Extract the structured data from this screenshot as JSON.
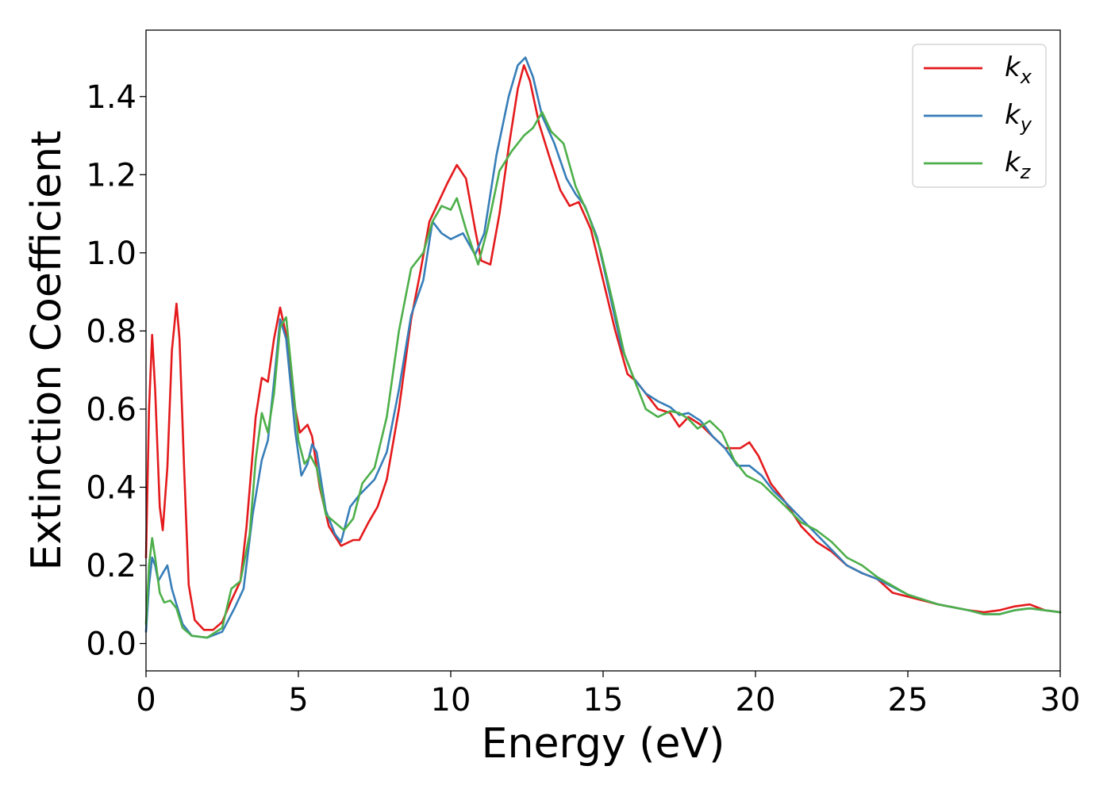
{
  "chart_data": {
    "type": "line",
    "title": "",
    "xlabel": "Energy (eV)",
    "ylabel": "Extinction Coefficient",
    "xlim": [
      0,
      30
    ],
    "ylim": [
      -0.07,
      1.57
    ],
    "xticks": [
      "0",
      "5",
      "10",
      "15",
      "20",
      "25",
      "30"
    ],
    "yticks": [
      "0.0",
      "0.2",
      "0.4",
      "0.6",
      "0.8",
      "1.0",
      "1.2",
      "1.4"
    ],
    "grid": false,
    "legend_position": "top-right",
    "series": [
      {
        "name": "k_x",
        "legend_main": "k",
        "legend_sub": "x",
        "color": "#e41a1c",
        "points": [
          [
            0,
            0.22
          ],
          [
            0.1,
            0.6
          ],
          [
            0.2,
            0.79
          ],
          [
            0.3,
            0.65
          ],
          [
            0.45,
            0.35
          ],
          [
            0.55,
            0.29
          ],
          [
            0.7,
            0.45
          ],
          [
            0.85,
            0.75
          ],
          [
            1.0,
            0.87
          ],
          [
            1.1,
            0.78
          ],
          [
            1.25,
            0.45
          ],
          [
            1.4,
            0.15
          ],
          [
            1.6,
            0.06
          ],
          [
            1.9,
            0.035
          ],
          [
            2.2,
            0.035
          ],
          [
            2.5,
            0.055
          ],
          [
            2.8,
            0.11
          ],
          [
            3.1,
            0.16
          ],
          [
            3.3,
            0.3
          ],
          [
            3.6,
            0.58
          ],
          [
            3.8,
            0.68
          ],
          [
            4.0,
            0.67
          ],
          [
            4.2,
            0.78
          ],
          [
            4.4,
            0.86
          ],
          [
            4.6,
            0.79
          ],
          [
            4.85,
            0.62
          ],
          [
            5.05,
            0.54
          ],
          [
            5.3,
            0.56
          ],
          [
            5.45,
            0.53
          ],
          [
            5.7,
            0.4
          ],
          [
            6.0,
            0.3
          ],
          [
            6.4,
            0.25
          ],
          [
            6.8,
            0.265
          ],
          [
            7.0,
            0.265
          ],
          [
            7.3,
            0.31
          ],
          [
            7.6,
            0.35
          ],
          [
            7.9,
            0.42
          ],
          [
            8.3,
            0.6
          ],
          [
            8.7,
            0.83
          ],
          [
            9.0,
            0.95
          ],
          [
            9.3,
            1.08
          ],
          [
            9.6,
            1.13
          ],
          [
            9.9,
            1.18
          ],
          [
            10.2,
            1.225
          ],
          [
            10.5,
            1.19
          ],
          [
            10.8,
            1.06
          ],
          [
            11.0,
            0.98
          ],
          [
            11.3,
            0.97
          ],
          [
            11.6,
            1.1
          ],
          [
            11.9,
            1.27
          ],
          [
            12.2,
            1.42
          ],
          [
            12.4,
            1.48
          ],
          [
            12.6,
            1.44
          ],
          [
            12.9,
            1.33
          ],
          [
            13.3,
            1.23
          ],
          [
            13.6,
            1.16
          ],
          [
            13.9,
            1.12
          ],
          [
            14.2,
            1.13
          ],
          [
            14.6,
            1.06
          ],
          [
            15.0,
            0.93
          ],
          [
            15.4,
            0.8
          ],
          [
            15.8,
            0.69
          ],
          [
            16.1,
            0.67
          ],
          [
            16.5,
            0.63
          ],
          [
            16.8,
            0.6
          ],
          [
            17.2,
            0.59
          ],
          [
            17.5,
            0.555
          ],
          [
            17.8,
            0.58
          ],
          [
            18.2,
            0.56
          ],
          [
            18.6,
            0.53
          ],
          [
            19.0,
            0.5
          ],
          [
            19.5,
            0.5
          ],
          [
            19.8,
            0.515
          ],
          [
            20.1,
            0.48
          ],
          [
            20.5,
            0.41
          ],
          [
            21.0,
            0.36
          ],
          [
            21.5,
            0.3
          ],
          [
            22.0,
            0.26
          ],
          [
            22.5,
            0.235
          ],
          [
            23.0,
            0.2
          ],
          [
            23.5,
            0.18
          ],
          [
            24.0,
            0.165
          ],
          [
            24.5,
            0.13
          ],
          [
            25.0,
            0.12
          ],
          [
            26.0,
            0.1
          ],
          [
            27.0,
            0.085
          ],
          [
            27.5,
            0.08
          ],
          [
            28.0,
            0.085
          ],
          [
            28.5,
            0.095
          ],
          [
            29.0,
            0.1
          ],
          [
            29.5,
            0.085
          ],
          [
            30.0,
            0.08
          ]
        ]
      },
      {
        "name": "k_y",
        "legend_main": "k",
        "legend_sub": "y",
        "color": "#377eb8",
        "points": [
          [
            0,
            0.03
          ],
          [
            0.1,
            0.15
          ],
          [
            0.2,
            0.22
          ],
          [
            0.3,
            0.2
          ],
          [
            0.4,
            0.16
          ],
          [
            0.55,
            0.18
          ],
          [
            0.7,
            0.2
          ],
          [
            0.85,
            0.14
          ],
          [
            1.0,
            0.1
          ],
          [
            1.2,
            0.05
          ],
          [
            1.5,
            0.02
          ],
          [
            2.0,
            0.015
          ],
          [
            2.5,
            0.03
          ],
          [
            2.9,
            0.09
          ],
          [
            3.2,
            0.14
          ],
          [
            3.5,
            0.33
          ],
          [
            3.8,
            0.47
          ],
          [
            4.0,
            0.52
          ],
          [
            4.2,
            0.67
          ],
          [
            4.4,
            0.83
          ],
          [
            4.6,
            0.78
          ],
          [
            4.9,
            0.54
          ],
          [
            5.1,
            0.43
          ],
          [
            5.3,
            0.46
          ],
          [
            5.45,
            0.51
          ],
          [
            5.6,
            0.49
          ],
          [
            5.9,
            0.34
          ],
          [
            6.2,
            0.28
          ],
          [
            6.4,
            0.26
          ],
          [
            6.7,
            0.35
          ],
          [
            7.0,
            0.38
          ],
          [
            7.5,
            0.42
          ],
          [
            7.9,
            0.49
          ],
          [
            8.3,
            0.65
          ],
          [
            8.7,
            0.84
          ],
          [
            9.1,
            0.93
          ],
          [
            9.4,
            1.08
          ],
          [
            9.7,
            1.05
          ],
          [
            10.0,
            1.035
          ],
          [
            10.4,
            1.05
          ],
          [
            10.8,
            0.995
          ],
          [
            11.1,
            1.05
          ],
          [
            11.5,
            1.25
          ],
          [
            11.9,
            1.4
          ],
          [
            12.2,
            1.48
          ],
          [
            12.45,
            1.5
          ],
          [
            12.7,
            1.45
          ],
          [
            13.0,
            1.35
          ],
          [
            13.4,
            1.28
          ],
          [
            13.8,
            1.19
          ],
          [
            14.1,
            1.15
          ],
          [
            14.4,
            1.12
          ],
          [
            14.8,
            1.04
          ],
          [
            15.2,
            0.9
          ],
          [
            15.6,
            0.76
          ],
          [
            16.0,
            0.68
          ],
          [
            16.4,
            0.64
          ],
          [
            16.8,
            0.62
          ],
          [
            17.2,
            0.605
          ],
          [
            17.5,
            0.585
          ],
          [
            17.8,
            0.59
          ],
          [
            18.2,
            0.57
          ],
          [
            18.6,
            0.53
          ],
          [
            19.0,
            0.5
          ],
          [
            19.4,
            0.455
          ],
          [
            19.8,
            0.455
          ],
          [
            20.2,
            0.43
          ],
          [
            20.6,
            0.39
          ],
          [
            21.0,
            0.36
          ],
          [
            21.5,
            0.32
          ],
          [
            22.0,
            0.28
          ],
          [
            22.5,
            0.24
          ],
          [
            23.0,
            0.2
          ],
          [
            23.5,
            0.18
          ],
          [
            24.0,
            0.165
          ],
          [
            25.0,
            0.125
          ],
          [
            26.0,
            0.1
          ],
          [
            27.0,
            0.085
          ],
          [
            27.5,
            0.075
          ],
          [
            28.0,
            0.075
          ],
          [
            28.5,
            0.085
          ],
          [
            29.0,
            0.09
          ],
          [
            29.5,
            0.085
          ],
          [
            30.0,
            0.08
          ]
        ]
      },
      {
        "name": "k_z",
        "legend_main": "k",
        "legend_sub": "z",
        "color": "#4daf4a",
        "points": [
          [
            0,
            0.05
          ],
          [
            0.1,
            0.2
          ],
          [
            0.2,
            0.27
          ],
          [
            0.3,
            0.22
          ],
          [
            0.45,
            0.13
          ],
          [
            0.6,
            0.105
          ],
          [
            0.8,
            0.11
          ],
          [
            1.0,
            0.09
          ],
          [
            1.2,
            0.04
          ],
          [
            1.5,
            0.02
          ],
          [
            2.0,
            0.015
          ],
          [
            2.5,
            0.04
          ],
          [
            2.8,
            0.14
          ],
          [
            3.1,
            0.16
          ],
          [
            3.4,
            0.28
          ],
          [
            3.6,
            0.47
          ],
          [
            3.8,
            0.59
          ],
          [
            4.0,
            0.54
          ],
          [
            4.2,
            0.64
          ],
          [
            4.4,
            0.81
          ],
          [
            4.6,
            0.835
          ],
          [
            4.8,
            0.68
          ],
          [
            5.0,
            0.52
          ],
          [
            5.2,
            0.46
          ],
          [
            5.4,
            0.48
          ],
          [
            5.6,
            0.45
          ],
          [
            5.9,
            0.33
          ],
          [
            6.2,
            0.31
          ],
          [
            6.5,
            0.29
          ],
          [
            6.8,
            0.32
          ],
          [
            7.1,
            0.41
          ],
          [
            7.5,
            0.45
          ],
          [
            7.9,
            0.58
          ],
          [
            8.3,
            0.8
          ],
          [
            8.7,
            0.96
          ],
          [
            9.1,
            1.0
          ],
          [
            9.4,
            1.08
          ],
          [
            9.7,
            1.12
          ],
          [
            10.0,
            1.11
          ],
          [
            10.2,
            1.14
          ],
          [
            10.5,
            1.06
          ],
          [
            10.9,
            0.97
          ],
          [
            11.2,
            1.06
          ],
          [
            11.6,
            1.21
          ],
          [
            12.0,
            1.26
          ],
          [
            12.4,
            1.3
          ],
          [
            12.7,
            1.32
          ],
          [
            13.0,
            1.36
          ],
          [
            13.3,
            1.31
          ],
          [
            13.7,
            1.28
          ],
          [
            14.1,
            1.17
          ],
          [
            14.5,
            1.1
          ],
          [
            14.9,
            1.01
          ],
          [
            15.3,
            0.88
          ],
          [
            15.7,
            0.74
          ],
          [
            16.0,
            0.68
          ],
          [
            16.4,
            0.6
          ],
          [
            16.8,
            0.58
          ],
          [
            17.2,
            0.595
          ],
          [
            17.5,
            0.59
          ],
          [
            17.8,
            0.575
          ],
          [
            18.1,
            0.55
          ],
          [
            18.5,
            0.57
          ],
          [
            18.9,
            0.54
          ],
          [
            19.3,
            0.47
          ],
          [
            19.7,
            0.43
          ],
          [
            20.2,
            0.41
          ],
          [
            20.6,
            0.38
          ],
          [
            21.0,
            0.35
          ],
          [
            21.5,
            0.31
          ],
          [
            22.0,
            0.29
          ],
          [
            22.5,
            0.26
          ],
          [
            23.0,
            0.22
          ],
          [
            23.5,
            0.2
          ],
          [
            24.0,
            0.17
          ],
          [
            25.0,
            0.125
          ],
          [
            26.0,
            0.1
          ],
          [
            27.0,
            0.085
          ],
          [
            27.5,
            0.075
          ],
          [
            28.0,
            0.075
          ],
          [
            28.5,
            0.085
          ],
          [
            29.0,
            0.09
          ],
          [
            29.5,
            0.085
          ],
          [
            30.0,
            0.08
          ]
        ]
      }
    ]
  }
}
